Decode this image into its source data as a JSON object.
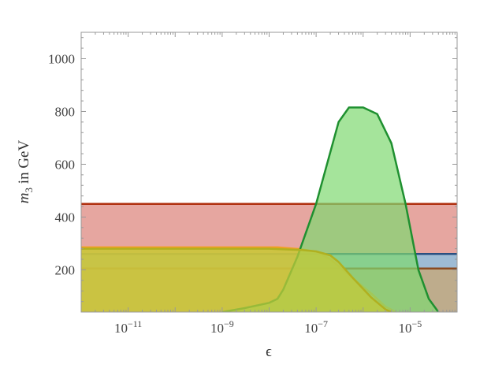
{
  "chart_data": {
    "type": "area",
    "title": "",
    "xlabel": "ϵ",
    "ylabel_symbol": "m",
    "ylabel_subscript": "3",
    "ylabel_rest": " in GeV",
    "x_scale": "log",
    "xlim": [
      1e-12,
      0.0001
    ],
    "ylim": [
      40,
      1100
    ],
    "x_ticks": [
      {
        "value": 1e-11,
        "base": "10",
        "exp": "−11"
      },
      {
        "value": 1e-09,
        "base": "10",
        "exp": "−9"
      },
      {
        "value": 1e-07,
        "base": "10",
        "exp": "−7"
      },
      {
        "value": 1e-05,
        "base": "10",
        "exp": "−5"
      }
    ],
    "y_ticks": [
      {
        "value": 200,
        "label": "200"
      },
      {
        "value": 400,
        "label": "400"
      },
      {
        "value": 600,
        "label": "600"
      },
      {
        "value": 800,
        "label": "800"
      },
      {
        "value": 1000,
        "label": "1000"
      }
    ],
    "grid": false,
    "series": [
      {
        "fill": "#dd8880",
        "stroke": "#b03010",
        "opacity": 0.75,
        "upper": [
          [
            1e-12,
            450
          ],
          [
            0.0001,
            450
          ]
        ]
      },
      {
        "fill": "#90bedd",
        "stroke": "#2a4f80",
        "opacity": 0.85,
        "upper": [
          [
            1e-12,
            260
          ],
          [
            0.0001,
            260
          ]
        ]
      },
      {
        "fill": "#d9a050",
        "stroke": "#8a4a20",
        "opacity": 0.55,
        "upper": [
          [
            1e-12,
            205
          ],
          [
            0.0001,
            205
          ]
        ]
      },
      {
        "fill": "#f4b740",
        "stroke": "#f0a020",
        "opacity": 0.75,
        "upper": [
          [
            1e-12,
            285
          ],
          [
            1.5e-08,
            285
          ],
          [
            5e-08,
            278
          ],
          [
            1e-07,
            268
          ],
          [
            2e-07,
            240
          ],
          [
            5e-07,
            180
          ],
          [
            1.5e-06,
            110
          ],
          [
            3e-06,
            60
          ],
          [
            5e-06,
            40
          ]
        ]
      },
      {
        "fill": "#7fd870",
        "stroke": "#1f9030",
        "opacity": 0.7,
        "upper": [
          [
            1e-09,
            40
          ],
          [
            3e-09,
            55
          ],
          [
            1e-08,
            75
          ],
          [
            1.5e-08,
            90
          ],
          [
            2e-08,
            125
          ],
          [
            4e-08,
            250
          ],
          [
            1e-07,
            450
          ],
          [
            3e-07,
            760
          ],
          [
            5e-07,
            815
          ],
          [
            1e-06,
            815
          ],
          [
            2e-06,
            790
          ],
          [
            4e-06,
            680
          ],
          [
            8e-06,
            450
          ],
          [
            1.5e-05,
            200
          ],
          [
            2.5e-05,
            90
          ],
          [
            4e-05,
            40
          ]
        ]
      },
      {
        "fill": "#c0c83c",
        "stroke": "#b0b020",
        "opacity": 0.75,
        "upper": [
          [
            1e-12,
            280
          ],
          [
            1e-08,
            280
          ],
          [
            5e-08,
            275
          ],
          [
            1e-07,
            270
          ],
          [
            2e-07,
            255
          ],
          [
            3e-07,
            230
          ],
          [
            6e-07,
            170
          ],
          [
            1.5e-06,
            95
          ],
          [
            3e-06,
            50
          ],
          [
            4e-06,
            40
          ]
        ]
      }
    ]
  }
}
